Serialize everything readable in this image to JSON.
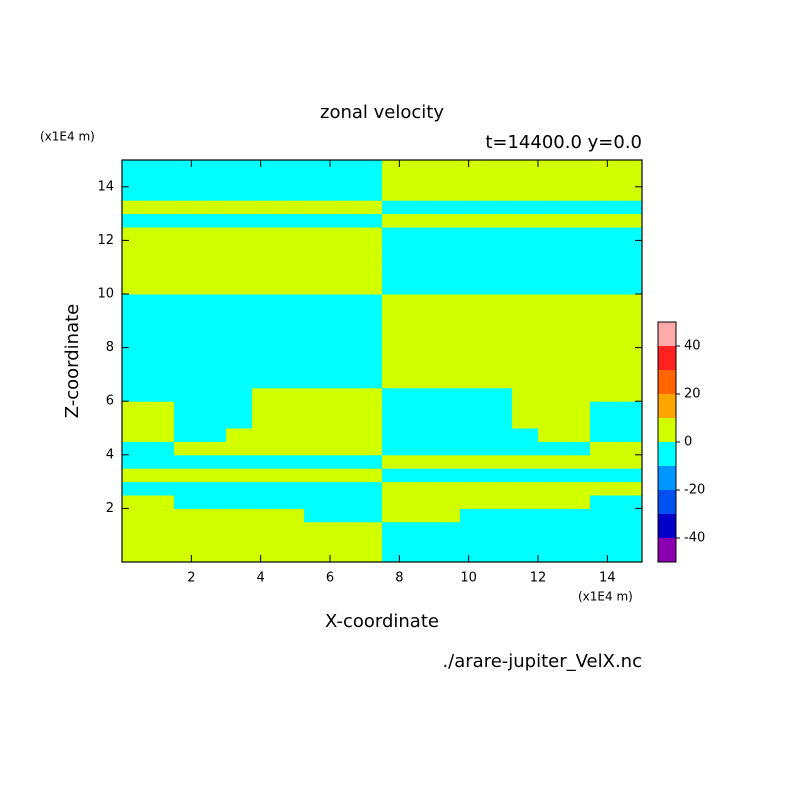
{
  "chart_data": {
    "type": "heatmap",
    "title": "zonal velocity",
    "subtitle": "t=14400.0 y=0.0",
    "x_label": "X-coordinate",
    "y_label": "Z-coordinate",
    "x_unit": "(x1E4 m)",
    "y_unit": "(x1E4 m)",
    "source": "./arare-jupiter_VelX.nc",
    "xlim": [
      0,
      15
    ],
    "ylim": [
      0,
      15
    ],
    "xticks": [
      2,
      4,
      6,
      8,
      10,
      12,
      14
    ],
    "yticks": [
      2,
      4,
      6,
      8,
      10,
      12,
      14
    ],
    "x": [
      0.375,
      1.125,
      1.875,
      2.625,
      3.375,
      4.125,
      4.875,
      5.625,
      6.375,
      7.125,
      7.875,
      8.625,
      9.375,
      10.125,
      10.875,
      11.625,
      12.375,
      13.125,
      13.875,
      14.625
    ],
    "y": [
      0.25,
      0.75,
      1.25,
      1.75,
      2.25,
      2.75,
      3.25,
      3.75,
      4.25,
      4.75,
      5.25,
      5.75,
      6.25,
      6.75,
      7.25,
      7.75,
      8.25,
      8.75,
      9.25,
      9.75,
      10.25,
      10.75,
      11.25,
      11.75,
      12.25,
      12.75,
      13.25,
      13.75,
      14.25,
      14.75
    ],
    "z": [
      [
        5,
        5,
        5,
        5,
        5,
        5,
        5,
        5,
        5,
        5,
        -5,
        -5,
        -5,
        -5,
        -5,
        -5,
        -5,
        -5,
        -5,
        -5
      ],
      [
        5,
        5,
        5,
        5,
        5,
        5,
        5,
        5,
        5,
        5,
        -5,
        -5,
        -5,
        -5,
        -5,
        -5,
        -5,
        -5,
        -5,
        -5
      ],
      [
        5,
        5,
        5,
        5,
        5,
        5,
        5,
        5,
        5,
        5,
        -5,
        -5,
        -5,
        -5,
        -5,
        -5,
        -5,
        -5,
        -5,
        -5
      ],
      [
        5,
        5,
        5,
        5,
        5,
        5,
        5,
        -5,
        -5,
        -5,
        5,
        5,
        5,
        -5,
        -5,
        -5,
        -5,
        -5,
        -5,
        -5
      ],
      [
        5,
        5,
        -5,
        -5,
        -5,
        -5,
        -5,
        -5,
        -5,
        -5,
        5,
        5,
        5,
        5,
        5,
        5,
        5,
        5,
        -5,
        -5
      ],
      [
        -5,
        -5,
        -5,
        -5,
        -5,
        -5,
        -5,
        -5,
        -5,
        -5,
        5,
        5,
        5,
        5,
        5,
        5,
        5,
        5,
        5,
        5
      ],
      [
        5,
        5,
        5,
        5,
        5,
        5,
        5,
        5,
        5,
        5,
        -5,
        -5,
        -5,
        -5,
        -5,
        -5,
        -5,
        -5,
        -5,
        -5
      ],
      [
        -5,
        -5,
        -5,
        -5,
        -5,
        -5,
        -5,
        -5,
        -5,
        -5,
        5,
        5,
        5,
        5,
        5,
        5,
        5,
        5,
        5,
        5
      ],
      [
        -5,
        -5,
        5,
        5,
        5,
        5,
        5,
        5,
        5,
        5,
        -5,
        -5,
        -5,
        -5,
        -5,
        -5,
        -5,
        -5,
        5,
        5
      ],
      [
        5,
        5,
        -5,
        -5,
        5,
        5,
        5,
        5,
        5,
        5,
        -5,
        -5,
        -5,
        -5,
        -5,
        -5,
        5,
        5,
        -5,
        -5
      ],
      [
        5,
        5,
        -5,
        -5,
        -5,
        5,
        5,
        5,
        5,
        5,
        -5,
        -5,
        -5,
        -5,
        -5,
        5,
        5,
        5,
        -5,
        -5
      ],
      [
        5,
        5,
        -5,
        -5,
        -5,
        5,
        5,
        5,
        5,
        5,
        -5,
        -5,
        -5,
        -5,
        -5,
        5,
        5,
        5,
        -5,
        -5
      ],
      [
        -5,
        -5,
        -5,
        -5,
        -5,
        5,
        5,
        5,
        5,
        5,
        -5,
        -5,
        -5,
        -5,
        -5,
        5,
        5,
        5,
        5,
        5
      ],
      [
        -5,
        -5,
        -5,
        -5,
        -5,
        -5,
        -5,
        -5,
        -5,
        -5,
        5,
        5,
        5,
        5,
        5,
        5,
        5,
        5,
        5,
        5
      ],
      [
        -5,
        -5,
        -5,
        -5,
        -5,
        -5,
        -5,
        -5,
        -5,
        -5,
        5,
        5,
        5,
        5,
        5,
        5,
        5,
        5,
        5,
        5
      ],
      [
        -5,
        -5,
        -5,
        -5,
        -5,
        -5,
        -5,
        -5,
        -5,
        -5,
        5,
        5,
        5,
        5,
        5,
        5,
        5,
        5,
        5,
        5
      ],
      [
        -5,
        -5,
        -5,
        -5,
        -5,
        -5,
        -5,
        -5,
        -5,
        -5,
        5,
        5,
        5,
        5,
        5,
        5,
        5,
        5,
        5,
        5
      ],
      [
        -5,
        -5,
        -5,
        -5,
        -5,
        -5,
        -5,
        -5,
        -5,
        -5,
        5,
        5,
        5,
        5,
        5,
        5,
        5,
        5,
        5,
        5
      ],
      [
        -5,
        -5,
        -5,
        -5,
        -5,
        -5,
        -5,
        -5,
        -5,
        -5,
        5,
        5,
        5,
        5,
        5,
        5,
        5,
        5,
        5,
        5
      ],
      [
        -5,
        -5,
        -5,
        -5,
        -5,
        -5,
        -5,
        -5,
        -5,
        -5,
        5,
        5,
        5,
        5,
        5,
        5,
        5,
        5,
        5,
        5
      ],
      [
        5,
        5,
        5,
        5,
        5,
        5,
        5,
        5,
        5,
        5,
        -5,
        -5,
        -5,
        -5,
        -5,
        -5,
        -5,
        -5,
        -5,
        -5
      ],
      [
        5,
        5,
        5,
        5,
        5,
        5,
        5,
        5,
        5,
        5,
        -5,
        -5,
        -5,
        -5,
        -5,
        -5,
        -5,
        -5,
        -5,
        -5
      ],
      [
        5,
        5,
        5,
        5,
        5,
        5,
        5,
        5,
        5,
        5,
        -5,
        -5,
        -5,
        -5,
        -5,
        -5,
        -5,
        -5,
        -5,
        -5
      ],
      [
        5,
        5,
        5,
        5,
        5,
        5,
        5,
        5,
        5,
        5,
        -5,
        -5,
        -5,
        -5,
        -5,
        -5,
        -5,
        -5,
        -5,
        -5
      ],
      [
        5,
        5,
        5,
        5,
        5,
        5,
        5,
        5,
        5,
        5,
        -5,
        -5,
        -5,
        -5,
        -5,
        -5,
        -5,
        -5,
        -5,
        -5
      ],
      [
        -5,
        -5,
        -5,
        -5,
        -5,
        -5,
        -5,
        -5,
        -5,
        -5,
        5,
        5,
        5,
        5,
        5,
        5,
        5,
        5,
        5,
        5
      ],
      [
        5,
        5,
        5,
        5,
        5,
        5,
        5,
        5,
        5,
        5,
        -5,
        -5,
        -5,
        -5,
        -5,
        -5,
        -5,
        -5,
        -5,
        -5
      ],
      [
        -5,
        -5,
        -5,
        -5,
        -5,
        -5,
        -5,
        -5,
        -5,
        -5,
        5,
        5,
        5,
        5,
        5,
        5,
        5,
        5,
        5,
        5
      ],
      [
        -5,
        -5,
        -5,
        -5,
        -5,
        -5,
        -5,
        -5,
        -5,
        -5,
        5,
        5,
        5,
        5,
        5,
        5,
        5,
        5,
        5,
        5
      ],
      [
        -5,
        -5,
        -5,
        -5,
        -5,
        -5,
        -5,
        -5,
        -5,
        -5,
        5,
        5,
        5,
        5,
        5,
        5,
        5,
        5,
        5,
        5
      ]
    ],
    "levels": [
      -50,
      -40,
      -30,
      -20,
      -10,
      0,
      10,
      20,
      30,
      40,
      50
    ],
    "level_colors": [
      "#8a00b0",
      "#0000c8",
      "#0050f0",
      "#0096ff",
      "#00ffff",
      "#d2ff00",
      "#ffa500",
      "#ff6400",
      "#ff2020",
      "#ffaaaa"
    ],
    "colorbar_ticks": [
      -40,
      -20,
      0,
      20,
      40
    ]
  }
}
